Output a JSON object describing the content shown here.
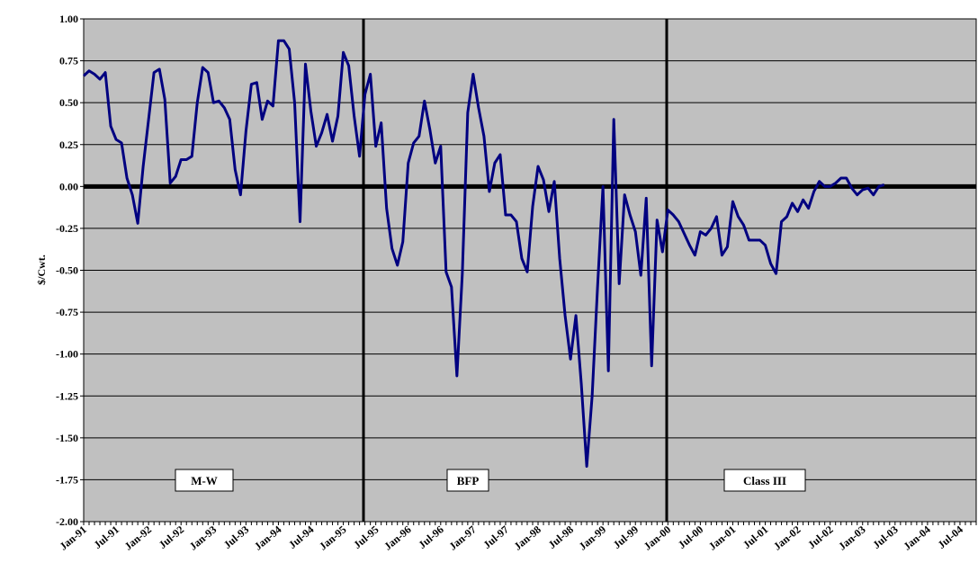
{
  "chart_data": {
    "type": "line",
    "y_label": "$/Cwt.",
    "categories": [
      "Jan-91",
      null,
      null,
      null,
      null,
      null,
      "Jul-91",
      null,
      null,
      null,
      null,
      null,
      "Jan-92",
      null,
      null,
      null,
      null,
      null,
      "Jul-92",
      null,
      null,
      null,
      null,
      null,
      "Jan-93",
      null,
      null,
      null,
      null,
      null,
      "Jul-93",
      null,
      null,
      null,
      null,
      null,
      "Jan-94",
      null,
      null,
      null,
      null,
      null,
      "Jul-94",
      null,
      null,
      null,
      null,
      null,
      "Jan-95",
      null,
      null,
      null,
      null,
      null,
      "Jul-95",
      null,
      null,
      null,
      null,
      null,
      "Jan-96",
      null,
      null,
      null,
      null,
      null,
      "Jul-96",
      null,
      null,
      null,
      null,
      null,
      "Jan-97",
      null,
      null,
      null,
      null,
      null,
      "Jul-97",
      null,
      null,
      null,
      null,
      null,
      "Jan-98",
      null,
      null,
      null,
      null,
      null,
      "Jul-98",
      null,
      null,
      null,
      null,
      null,
      "Jan-99",
      null,
      null,
      null,
      null,
      null,
      "Jul-99",
      null,
      null,
      null,
      null,
      null,
      "Jan-00",
      null,
      null,
      null,
      null,
      null,
      "Jul-00",
      null,
      null,
      null,
      null,
      null,
      "Jan-01",
      null,
      null,
      null,
      null,
      null,
      "Jul-01",
      null,
      null,
      null,
      null,
      null,
      "Jan-02",
      null,
      null,
      null,
      null,
      null,
      "Jul-02",
      null,
      null,
      null,
      null,
      null,
      "Jan-03",
      null,
      null,
      null,
      null,
      null,
      "Jul-03",
      null,
      null,
      null,
      null,
      null,
      "Jan-04",
      null,
      null,
      null,
      null,
      null,
      "Jul-04",
      null,
      null,
      null
    ],
    "series": [
      {
        "color": "#000080",
        "values": [
          0.66,
          0.69,
          0.67,
          0.64,
          0.68,
          0.36,
          0.28,
          0.26,
          0.05,
          -0.05,
          -0.22,
          0.12,
          0.4,
          0.68,
          0.7,
          0.52,
          0.02,
          0.06,
          0.16,
          0.16,
          0.18,
          0.5,
          0.71,
          0.68,
          0.5,
          0.51,
          0.47,
          0.4,
          0.1,
          -0.05,
          0.33,
          0.61,
          0.62,
          0.4,
          0.51,
          0.48,
          0.87,
          0.87,
          0.82,
          0.5,
          -0.21,
          0.73,
          0.45,
          0.24,
          0.32,
          0.43,
          0.27,
          0.42,
          0.8,
          0.72,
          0.42,
          0.18,
          0.55,
          0.67,
          0.24,
          0.38,
          -0.13,
          -0.37,
          -0.47,
          -0.33,
          0.14,
          0.26,
          0.3,
          0.51,
          0.34,
          0.14,
          0.24,
          -0.51,
          -0.6,
          -1.13,
          -0.52,
          0.44,
          0.67,
          0.47,
          0.3,
          -0.03,
          0.14,
          0.19,
          -0.17,
          -0.17,
          -0.21,
          -0.43,
          -0.51,
          -0.12,
          0.12,
          0.04,
          -0.15,
          0.03,
          -0.43,
          -0.77,
          -1.03,
          -0.77,
          -1.18,
          -1.67,
          -1.25,
          -0.6,
          0.0,
          -1.1,
          0.4,
          -0.58,
          -0.05,
          -0.17,
          -0.27,
          -0.53,
          -0.07,
          -1.07,
          -0.2,
          -0.39,
          -0.14,
          -0.17,
          -0.21,
          -0.28,
          -0.35,
          -0.41,
          -0.27,
          -0.29,
          -0.25,
          -0.18,
          -0.41,
          -0.36,
          -0.09,
          -0.18,
          -0.23,
          -0.32,
          -0.32,
          -0.32,
          -0.35,
          -0.46,
          -0.52,
          -0.21,
          -0.18,
          -0.1,
          -0.15,
          -0.08,
          -0.13,
          -0.03,
          0.03,
          0.0,
          0.0,
          0.02,
          0.05,
          0.05,
          -0.01,
          -0.05,
          -0.02,
          -0.01,
          -0.05,
          0.0,
          0.01,
          null,
          null,
          null,
          null,
          null,
          null,
          null,
          null,
          null,
          null,
          null,
          null,
          null,
          null,
          null,
          null,
          null
        ]
      }
    ],
    "ylim": [
      -2,
      1
    ],
    "yticks": [
      {
        "value": -2,
        "label": "-2.00"
      },
      {
        "value": -1.75,
        "label": "-1.75"
      },
      {
        "value": -1.5,
        "label": "-1.50"
      },
      {
        "value": -1.25,
        "label": "-1.25"
      },
      {
        "value": -1,
        "label": "-1.00"
      },
      {
        "value": -0.75,
        "label": "-0.75"
      },
      {
        "value": -0.5,
        "label": "-0.50"
      },
      {
        "value": -0.25,
        "label": "-0.25"
      },
      {
        "value": 0,
        "label": "0.00"
      },
      {
        "value": 0.25,
        "label": "0.25"
      },
      {
        "value": 0.5,
        "label": "0.50"
      },
      {
        "value": 0.75,
        "label": "0.75"
      },
      {
        "value": 1,
        "label": "1.00"
      }
    ],
    "grid": true,
    "annotations": [
      "M-W",
      "BFP",
      "Class III"
    ]
  }
}
